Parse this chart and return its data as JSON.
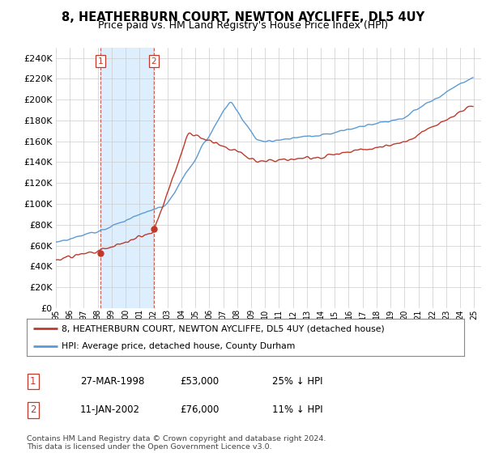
{
  "title": "8, HEATHERBURN COURT, NEWTON AYCLIFFE, DL5 4UY",
  "subtitle": "Price paid vs. HM Land Registry's House Price Index (HPI)",
  "legend_line1": "8, HEATHERBURN COURT, NEWTON AYCLIFFE, DL5 4UY (detached house)",
  "legend_line2": "HPI: Average price, detached house, County Durham",
  "sale1_date": "27-MAR-1998",
  "sale1_price": "£53,000",
  "sale1_hpi": "25% ↓ HPI",
  "sale2_date": "11-JAN-2002",
  "sale2_price": "£76,000",
  "sale2_hpi": "11% ↓ HPI",
  "footnote": "Contains HM Land Registry data © Crown copyright and database right 2024.\nThis data is licensed under the Open Government Licence v3.0.",
  "red_color": "#c0392b",
  "blue_color": "#5b9bd5",
  "shade_color": "#ddeeff",
  "background_color": "#ffffff",
  "grid_color": "#cccccc",
  "ylim": [
    0,
    250000
  ],
  "yticks": [
    0,
    20000,
    40000,
    60000,
    80000,
    100000,
    120000,
    140000,
    160000,
    180000,
    200000,
    220000,
    240000
  ],
  "sale1_x": 1998.21,
  "sale1_y": 53000,
  "sale2_x": 2002.03,
  "sale2_y": 76000,
  "xmin": 1995,
  "xmax": 2025.5
}
